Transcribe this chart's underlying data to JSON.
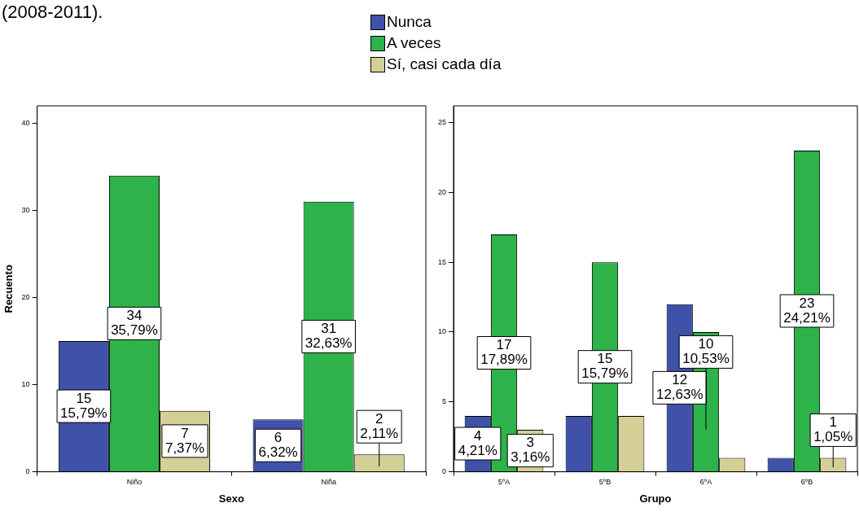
{
  "chart_data": [
    {
      "type": "bar",
      "annotations": [
        "(2008-2011)."
      ],
      "categories": [
        "Niño",
        "Niña"
      ],
      "xlabel": "Sexo",
      "ylabel": "Recuento",
      "ylim": [
        0,
        42
      ],
      "yticks": [
        0,
        10,
        20,
        30,
        40
      ],
      "legend": "top",
      "grid": false,
      "series": [
        {
          "name": "Nunca",
          "color": "#3f51a8",
          "values": [
            15,
            6
          ],
          "value_labels": [
            "15\n15,79%",
            "6\n6,32%"
          ]
        },
        {
          "name": "A veces",
          "color": "#2db34a",
          "values": [
            34,
            31
          ],
          "value_labels": [
            "34\n35,79%",
            "31\n32,63%"
          ]
        },
        {
          "name": "Sí, casi cada día",
          "color": "#d4cf96",
          "values": [
            7,
            2
          ],
          "value_labels": [
            "7\n7,37%",
            "2\n2,11%"
          ]
        }
      ]
    },
    {
      "type": "bar",
      "categories": [
        "5ºA",
        "5ºB",
        "6ºA",
        "6ºB"
      ],
      "xlabel": "Grupo",
      "ylim": [
        0,
        26.2
      ],
      "yticks": [
        0,
        5,
        10,
        15,
        20,
        25
      ],
      "grid": false,
      "series": [
        {
          "color": "#3f51a8",
          "values": [
            4,
            4,
            12,
            1
          ],
          "value_labels": [
            "4\n4,21%",
            null,
            "12\n12,63%",
            null
          ]
        },
        {
          "color": "#2db34a",
          "values": [
            17,
            15,
            10,
            23
          ],
          "value_labels": [
            "17\n17,89%",
            "15\n15,79%",
            "10\n10,53%",
            "23\n24,21%"
          ]
        },
        {
          "color": "#d4cf96",
          "values": [
            3,
            4,
            1,
            1
          ],
          "value_labels": [
            "3\n3,16%",
            null,
            null,
            "1\n1,05%"
          ]
        }
      ]
    }
  ]
}
